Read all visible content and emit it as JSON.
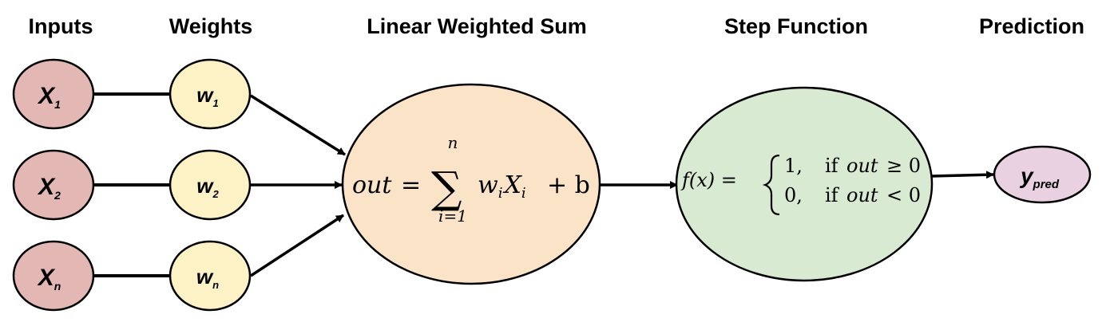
{
  "headers": {
    "inputs": "Inputs",
    "weights": "Weights",
    "sum": "Linear Weighted Sum",
    "step": "Step Function",
    "prediction": "Prediction"
  },
  "inputs": [
    {
      "base": "X",
      "sub": "1"
    },
    {
      "base": "X",
      "sub": "2"
    },
    {
      "base": "X",
      "sub": "n"
    }
  ],
  "weights": [
    {
      "base": "w",
      "sub": "1"
    },
    {
      "base": "w",
      "sub": "2"
    },
    {
      "base": "w",
      "sub": "n"
    }
  ],
  "sum_formula": {
    "lhs": "out",
    "eq": "=",
    "sigma": "∑",
    "upper": "n",
    "lower": "i=1",
    "w": "w",
    "w_sub": "i",
    "x": "X",
    "x_sub": "i",
    "plus_b": "+ b"
  },
  "step_formula": {
    "lhs": "f(x) =",
    "case1_value": "1,",
    "case1_if": "if",
    "case1_var": "out",
    "case1_cond": "≥ 0",
    "case2_value": "0,",
    "case2_if": "if",
    "case2_var": "out",
    "case2_cond": "< 0"
  },
  "prediction": {
    "base": "y",
    "sub": "pred"
  },
  "colors": {
    "input_fill": "#e3b7b3",
    "weight_fill": "#fdf2c6",
    "sum_fill": "#fbe3c8",
    "step_fill": "#d9ead3",
    "pred_fill": "#e9d1e1",
    "stroke": "#000000"
  }
}
